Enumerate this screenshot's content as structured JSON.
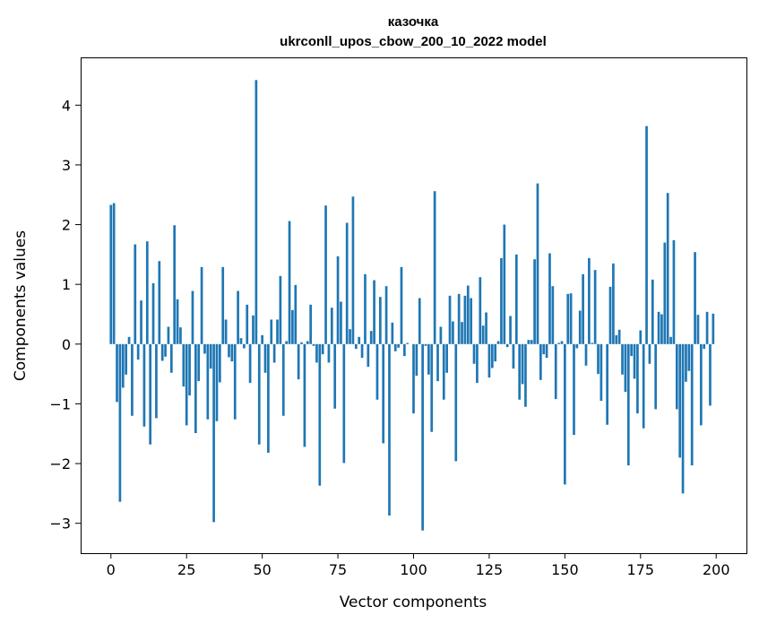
{
  "chart_data": {
    "type": "bar",
    "title_line1": "казочка",
    "title_line2": "ukrconll_upos_cbow_200_10_2022 model",
    "xlabel": "Vector components",
    "ylabel": "Components values",
    "xlim": [
      -10,
      210
    ],
    "ylim": [
      -3.5,
      4.8
    ],
    "xticks": [
      0,
      25,
      50,
      75,
      100,
      125,
      150,
      175,
      200
    ],
    "xtick_labels": [
      "0",
      "25",
      "50",
      "75",
      "100",
      "125",
      "150",
      "175",
      "200"
    ],
    "yticks": [
      -3,
      -2,
      -1,
      0,
      1,
      2,
      3,
      4
    ],
    "ytick_labels": [
      "−3",
      "−2",
      "−1",
      "0",
      "1",
      "2",
      "3",
      "4"
    ],
    "bar_color": "#1f77b4",
    "values": [
      2.33,
      2.36,
      -0.97,
      -2.64,
      -0.73,
      -0.51,
      0.12,
      -1.2,
      1.67,
      -0.26,
      0.73,
      -1.38,
      1.72,
      -1.68,
      1.02,
      -1.24,
      1.39,
      -0.28,
      -0.21,
      0.29,
      -0.48,
      1.99,
      0.75,
      0.28,
      -0.71,
      -1.36,
      -0.86,
      0.89,
      -1.49,
      -0.62,
      1.29,
      -0.16,
      -1.26,
      -0.41,
      -2.98,
      -1.29,
      -0.64,
      1.29,
      0.41,
      -0.22,
      -0.29,
      -1.26,
      0.89,
      0.1,
      -0.07,
      0.66,
      -0.65,
      0.48,
      4.42,
      -1.68,
      0.15,
      -0.48,
      -1.82,
      0.41,
      -0.31,
      0.41,
      1.14,
      -1.2,
      0.05,
      2.06,
      0.57,
      0.99,
      -0.59,
      0.03,
      -1.72,
      0.05,
      0.66,
      -0.03,
      -0.31,
      -2.37,
      -0.17,
      2.32,
      -0.31,
      0.61,
      -1.08,
      1.47,
      0.71,
      -1.99,
      2.03,
      0.25,
      2.47,
      -0.08,
      0.12,
      -0.23,
      1.17,
      -0.38,
      0.22,
      1.07,
      -0.93,
      0.79,
      -1.66,
      0.97,
      -2.87,
      0.36,
      -0.12,
      -0.06,
      1.29,
      -0.2,
      0.02,
      0.0,
      -1.16,
      -0.53,
      0.77,
      -3.12,
      -0.03,
      -0.51,
      -1.47,
      2.56,
      -0.62,
      0.29,
      -0.93,
      -0.48,
      0.81,
      0.38,
      -1.96,
      0.84,
      0.37,
      0.81,
      0.98,
      0.77,
      -0.33,
      -0.65,
      1.12,
      0.31,
      0.53,
      -0.56,
      -0.4,
      -0.29,
      0.05,
      1.44,
      2.0,
      -0.05,
      0.47,
      -0.41,
      1.5,
      -0.93,
      -0.67,
      -1.05,
      0.07,
      0.07,
      1.42,
      2.69,
      -0.6,
      -0.17,
      -0.23,
      1.52,
      0.97,
      -0.92,
      0.02,
      0.05,
      -2.35,
      0.84,
      0.85,
      -1.52,
      -0.07,
      0.56,
      1.17,
      -0.36,
      1.44,
      0.02,
      1.24,
      -0.5,
      -0.95,
      0.0,
      -1.35,
      0.96,
      1.35,
      0.15,
      0.24,
      -0.51,
      -0.8,
      -2.03,
      -0.2,
      -0.58,
      -1.16,
      0.23,
      -1.41,
      3.65,
      -0.33,
      1.08,
      -1.09,
      0.54,
      0.5,
      1.7,
      2.53,
      0.12,
      1.74,
      -1.09,
      -1.9,
      -2.5,
      -0.63,
      -0.45,
      -2.03,
      1.54,
      0.49,
      -1.36,
      -0.08,
      0.54,
      -1.03,
      0.51
    ]
  }
}
